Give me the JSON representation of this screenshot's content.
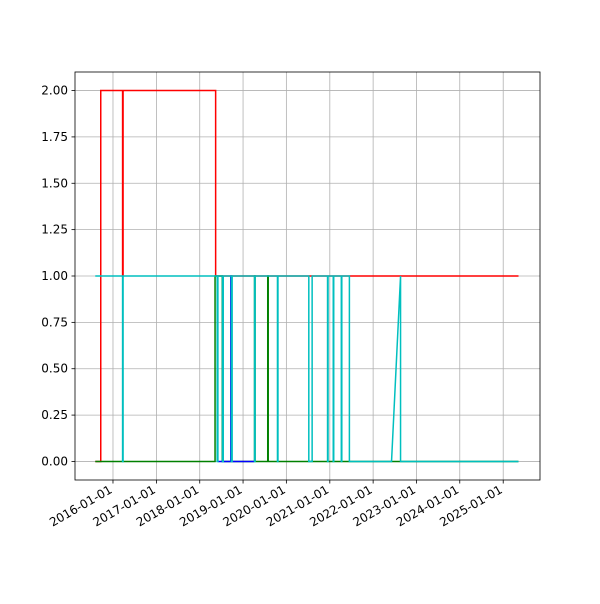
{
  "chart_data": {
    "type": "line",
    "grid": true,
    "xlim": [
      "2015-02-15",
      "2025-11-07"
    ],
    "xticks": [
      "2016-01-01",
      "2017-01-01",
      "2018-01-01",
      "2019-01-01",
      "2020-01-01",
      "2021-01-01",
      "2022-01-01",
      "2023-01-01",
      "2024-01-01",
      "2025-01-01"
    ],
    "ylim": [
      -0.1,
      2.1
    ],
    "yticks": [
      {
        "value": 0,
        "label": "0.00"
      },
      {
        "value": 0.25,
        "label": "0.25"
      },
      {
        "value": 0.5,
        "label": "0.50"
      },
      {
        "value": 0.75,
        "label": "0.75"
      },
      {
        "value": 1,
        "label": "1.00"
      },
      {
        "value": 1.25,
        "label": "1.25"
      },
      {
        "value": 1.5,
        "label": "1.50"
      },
      {
        "value": 1.75,
        "label": "1.75"
      },
      {
        "value": 2,
        "label": "2.00"
      }
    ],
    "series": [
      {
        "color": "#ff0000",
        "x": [
          "2015-08-05",
          "2015-09-20",
          "2015-09-20",
          "2016-03-22",
          "2016-03-22",
          "2016-03-26",
          "2016-03-26",
          "2018-05-15",
          "2018-05-15",
          "2025-05-10"
        ],
        "values": [
          0,
          0,
          2,
          2,
          1,
          1,
          2,
          2,
          1,
          1
        ]
      },
      {
        "color": "#008000",
        "x": [
          "2015-08-05",
          "2018-05-10",
          "2018-05-10",
          "2018-07-10",
          "2018-07-10",
          "2019-04-08",
          "2019-04-08",
          "2019-04-12",
          "2019-04-12",
          "2019-07-28",
          "2019-07-28",
          "2019-08-01",
          "2019-08-01",
          "2025-05-10"
        ],
        "values": [
          0,
          0,
          1,
          1,
          0,
          0,
          1,
          1,
          0,
          0,
          1,
          1,
          0,
          0
        ]
      },
      {
        "color": "#0000ff",
        "x": [
          "2018-06-01",
          "2018-09-20",
          "2018-09-20",
          "2018-09-26",
          "2018-09-26",
          "2019-04-05"
        ],
        "values": [
          0,
          0,
          1,
          1,
          0,
          0
        ]
      },
      {
        "color": "#00bfbf",
        "x": [
          "2015-08-05",
          "2016-03-22",
          "2016-03-22",
          "2016-03-26",
          "2016-03-26",
          "2018-05-28",
          "2018-05-28",
          "2018-06-03",
          "2018-06-03",
          "2018-07-12",
          "2018-07-12",
          "2018-07-18",
          "2018-07-18",
          "2018-09-25",
          "2018-09-25",
          "2018-10-01",
          "2018-10-01",
          "2019-04-08",
          "2019-04-08",
          "2019-04-12",
          "2019-04-12",
          "2019-10-18",
          "2019-10-18",
          "2019-10-22",
          "2019-10-22",
          "2020-07-08",
          "2020-07-08",
          "2020-08-05",
          "2020-08-05",
          "2020-12-13",
          "2020-12-13",
          "2020-12-17",
          "2020-12-17",
          "2021-01-30",
          "2021-01-30",
          "2021-02-03",
          "2021-02-03",
          "2021-04-08",
          "2021-04-08",
          "2021-04-12",
          "2021-04-12",
          "2021-06-15",
          "2021-06-15",
          "2022-06-05",
          "2022-08-20",
          "2022-08-20",
          "2025-05-10"
        ],
        "values": [
          1,
          1,
          0,
          0,
          1,
          1,
          0,
          0,
          1,
          1,
          0,
          0,
          1,
          1,
          0,
          0,
          1,
          1,
          0,
          0,
          1,
          1,
          0,
          0,
          1,
          1,
          0,
          0,
          1,
          1,
          0,
          0,
          1,
          1,
          0,
          0,
          1,
          1,
          0,
          0,
          1,
          1,
          0,
          0,
          1,
          0,
          0
        ]
      }
    ]
  }
}
